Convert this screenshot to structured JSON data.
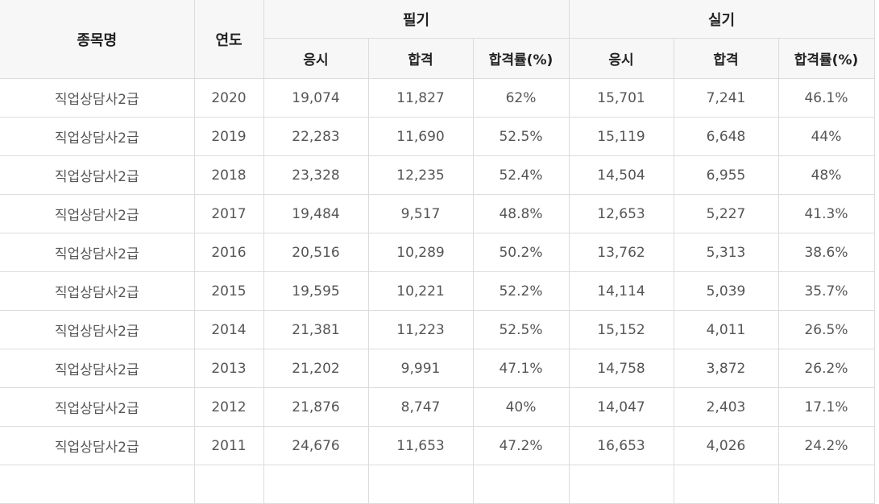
{
  "header": {
    "name": "종목명",
    "year": "연도",
    "written": "필기",
    "practical": "실기",
    "applicants": "응시",
    "passed": "합격",
    "rate": "합격률(%)"
  },
  "rows": [
    {
      "name": "직업상담사2급",
      "year": "2020",
      "w_app": "19,074",
      "w_pass": "11,827",
      "w_rate": "62%",
      "p_app": "15,701",
      "p_pass": "7,241",
      "p_rate": "46.1%"
    },
    {
      "name": "직업상담사2급",
      "year": "2019",
      "w_app": "22,283",
      "w_pass": "11,690",
      "w_rate": "52.5%",
      "p_app": "15,119",
      "p_pass": "6,648",
      "p_rate": "44%"
    },
    {
      "name": "직업상담사2급",
      "year": "2018",
      "w_app": "23,328",
      "w_pass": "12,235",
      "w_rate": "52.4%",
      "p_app": "14,504",
      "p_pass": "6,955",
      "p_rate": "48%"
    },
    {
      "name": "직업상담사2급",
      "year": "2017",
      "w_app": "19,484",
      "w_pass": "9,517",
      "w_rate": "48.8%",
      "p_app": "12,653",
      "p_pass": "5,227",
      "p_rate": "41.3%"
    },
    {
      "name": "직업상담사2급",
      "year": "2016",
      "w_app": "20,516",
      "w_pass": "10,289",
      "w_rate": "50.2%",
      "p_app": "13,762",
      "p_pass": "5,313",
      "p_rate": "38.6%"
    },
    {
      "name": "직업상담사2급",
      "year": "2015",
      "w_app": "19,595",
      "w_pass": "10,221",
      "w_rate": "52.2%",
      "p_app": "14,114",
      "p_pass": "5,039",
      "p_rate": "35.7%"
    },
    {
      "name": "직업상담사2급",
      "year": "2014",
      "w_app": "21,381",
      "w_pass": "11,223",
      "w_rate": "52.5%",
      "p_app": "15,152",
      "p_pass": "4,011",
      "p_rate": "26.5%"
    },
    {
      "name": "직업상담사2급",
      "year": "2013",
      "w_app": "21,202",
      "w_pass": "9,991",
      "w_rate": "47.1%",
      "p_app": "14,758",
      "p_pass": "3,872",
      "p_rate": "26.2%"
    },
    {
      "name": "직업상담사2급",
      "year": "2012",
      "w_app": "21,876",
      "w_pass": "8,747",
      "w_rate": "40%",
      "p_app": "14,047",
      "p_pass": "2,403",
      "p_rate": "17.1%"
    },
    {
      "name": "직업상담사2급",
      "year": "2011",
      "w_app": "24,676",
      "w_pass": "11,653",
      "w_rate": "47.2%",
      "p_app": "16,653",
      "p_pass": "4,026",
      "p_rate": "24.2%"
    },
    {
      "name": "",
      "year": "",
      "w_app": "",
      "w_pass": "",
      "w_rate": "",
      "p_app": "",
      "p_pass": "",
      "p_rate": ""
    }
  ]
}
